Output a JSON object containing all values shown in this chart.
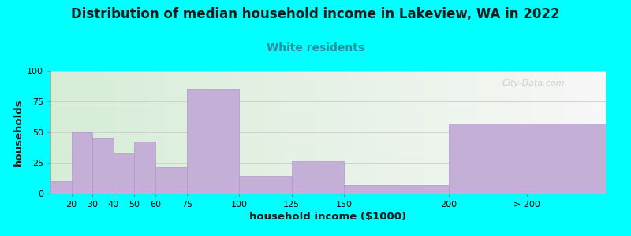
{
  "title": "Distribution of median household income in Lakeview, WA in 2022",
  "subtitle": "White residents",
  "xlabel": "household income ($1000)",
  "ylabel": "households",
  "background_color": "#00FFFF",
  "bar_color": "#c4afd6",
  "bar_edge_color": "#b098c8",
  "title_color": "#1a1a1a",
  "subtitle_color": "#338899",
  "watermark": "City-Data.com",
  "values": [
    10,
    50,
    45,
    33,
    42,
    22,
    85,
    14,
    26,
    7,
    57
  ],
  "bar_lefts": [
    10,
    20,
    30,
    40,
    50,
    60,
    75,
    100,
    125,
    150,
    200
  ],
  "bar_widths": [
    10,
    10,
    10,
    10,
    10,
    15,
    25,
    25,
    25,
    50,
    75
  ],
  "xlim": [
    10,
    275
  ],
  "ylim": [
    0,
    100
  ],
  "yticks": [
    0,
    25,
    50,
    75,
    100
  ],
  "xtick_positions": [
    20,
    30,
    40,
    50,
    60,
    75,
    100,
    125,
    150,
    200,
    237.5
  ],
  "xtick_labels": [
    "20",
    "30",
    "40",
    "50",
    "60",
    "75",
    "100",
    "125",
    "150",
    "200",
    "> 200"
  ],
  "grid_color": "#cccccc",
  "title_fontsize": 12,
  "subtitle_fontsize": 10,
  "axis_label_fontsize": 9.5
}
